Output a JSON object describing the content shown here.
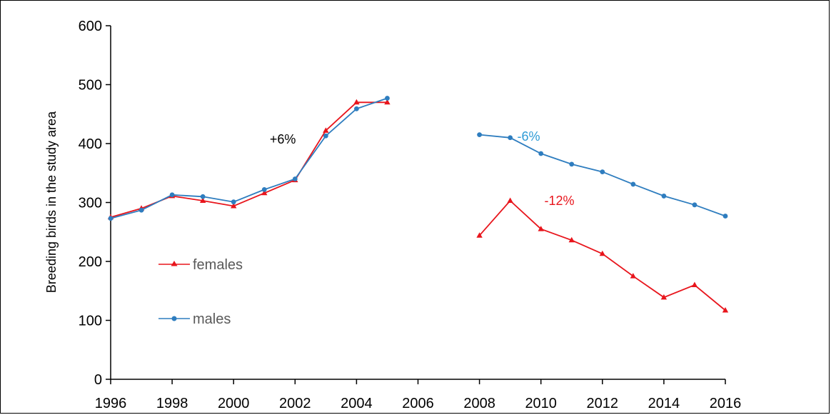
{
  "chart_data": {
    "type": "line",
    "ylabel": "Breeding birds in the study area",
    "xlabel": "",
    "xlim": [
      1996,
      2016
    ],
    "ylim": [
      0,
      600
    ],
    "x_ticks": [
      "1996",
      "1998",
      "2000",
      "2002",
      "2004",
      "2006",
      "2008",
      "2010",
      "2012",
      "2014",
      "2016"
    ],
    "y_ticks": [
      "0",
      "100",
      "200",
      "300",
      "400",
      "500",
      "600"
    ],
    "grid": false,
    "legend_position": "left",
    "series": [
      {
        "name": "females",
        "color": "#e8151c",
        "marker": "triangle",
        "segments": [
          {
            "x": [
              1996,
              1997,
              1998,
              1999,
              2000,
              2001,
              2002,
              2003,
              2004,
              2005
            ],
            "y": [
              275,
              290,
              311,
              303,
              294,
              316,
              338,
              422,
              470,
              470
            ]
          },
          {
            "x": [
              2008,
              2009,
              2010,
              2011,
              2012,
              2013,
              2014,
              2015,
              2016
            ],
            "y": [
              244,
              303,
              255,
              236,
              213,
              175,
              139,
              160,
              117
            ]
          }
        ]
      },
      {
        "name": "males",
        "color": "#2e7dbf",
        "marker": "circle",
        "segments": [
          {
            "x": [
              1996,
              1997,
              1998,
              1999,
              2000,
              2001,
              2002,
              2003,
              2004,
              2005
            ],
            "y": [
              273,
              287,
              313,
              310,
              301,
              322,
              340,
              413,
              459,
              477
            ]
          },
          {
            "x": [
              2008,
              2009,
              2010,
              2011,
              2012,
              2013,
              2014,
              2015,
              2016
            ],
            "y": [
              415,
              410,
              383,
              365,
              352,
              331,
              311,
              296,
              277
            ]
          }
        ]
      }
    ],
    "annotations": [
      {
        "text": "+6%",
        "x": 2001.6,
        "y": 400,
        "color": "#000000"
      },
      {
        "text": "-6%",
        "x": 2009.6,
        "y": 405,
        "color": "#2e9bd6"
      },
      {
        "text": "-12%",
        "x": 2010.6,
        "y": 296,
        "color": "#e8151c"
      }
    ]
  }
}
